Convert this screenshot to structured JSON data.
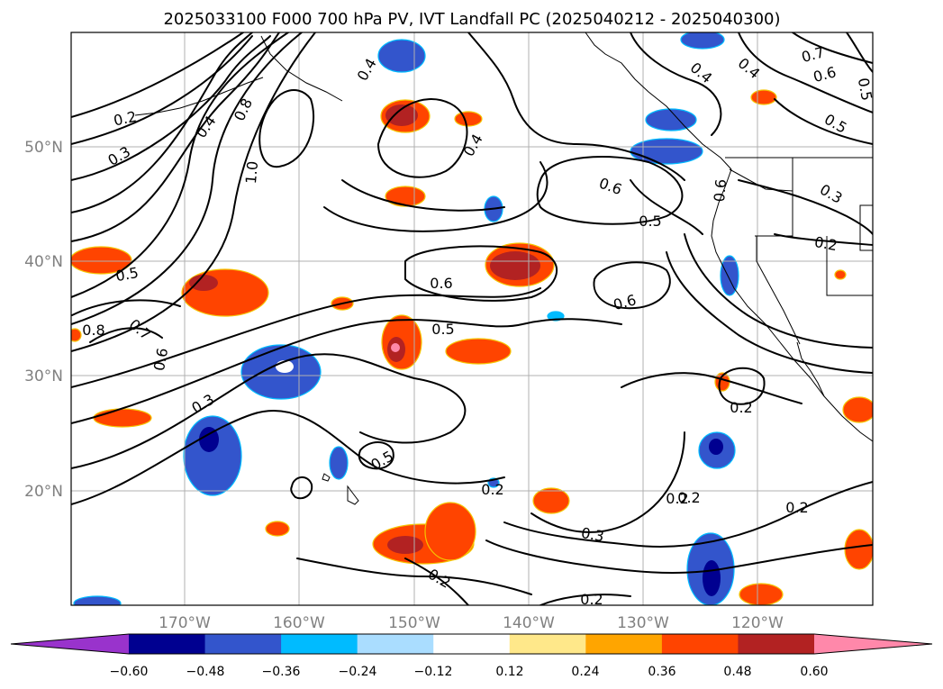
{
  "title": "2025033100 F000 700 hPa PV, IVT Landfall PC (2025040212 - 2025040300)",
  "map": {
    "lat_ticks": [
      "50°N",
      "40°N",
      "30°N",
      "20°N"
    ],
    "lon_ticks": [
      "170°W",
      "160°W",
      "150°W",
      "140°W",
      "130°W",
      "120°W"
    ]
  },
  "colorbar": {
    "tick_labels": [
      "−0.60",
      "−0.48",
      "−0.36",
      "−0.24",
      "−0.12",
      "0.12",
      "0.24",
      "0.36",
      "0.48",
      "0.60"
    ],
    "colors": [
      "#9933cc",
      "#000090",
      "#3355cc",
      "#00bbff",
      "#aaddff",
      "#ffffff",
      "#ffe88a",
      "#ffa500",
      "#ff4400",
      "#b22222",
      "#ff88aa"
    ]
  },
  "contour_labels": [
    "0.2",
    "0.3",
    "0.4",
    "0.8",
    "1.0",
    "0.5",
    "0.8",
    "0.7",
    "0.6",
    "0.3",
    "0.4",
    "0.6",
    "0.5",
    "0.6",
    "0.6",
    "0.5",
    "0.4",
    "0.2",
    "0.2",
    "0.2",
    "0.2",
    "0.3",
    "0.2",
    "0.2",
    "0.2",
    "0.6",
    "0.3",
    "0.2",
    "0.5",
    "0.4",
    "0.4",
    "0.7",
    "0.6",
    "0.5",
    "0.5"
  ]
}
